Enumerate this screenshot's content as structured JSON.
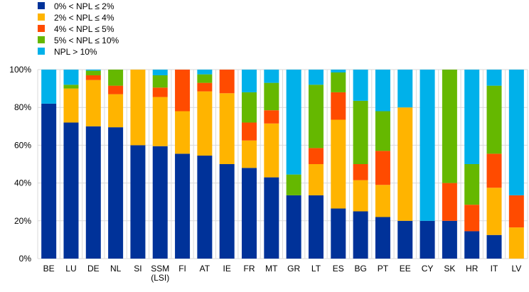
{
  "chart_data": {
    "type": "bar",
    "stacked": true,
    "title": "",
    "xlabel": "",
    "ylabel": "",
    "ylim": [
      0,
      100
    ],
    "yticks": [
      "0%",
      "20%",
      "40%",
      "60%",
      "80%",
      "100%"
    ],
    "ytick_values": [
      0,
      20,
      40,
      60,
      80,
      100
    ],
    "grid": true,
    "legend_position": "top-left",
    "categories": [
      "BE",
      "LU",
      "DE",
      "NL",
      "SI",
      "SSM\n(LSI)",
      "FI",
      "AT",
      "IE",
      "FR",
      "MT",
      "GR",
      "LT",
      "ES",
      "BG",
      "PT",
      "EE",
      "CY",
      "SK",
      "HR",
      "IT",
      "LV"
    ],
    "series": [
      {
        "name": "0% < NPL ≤ 2%",
        "color": "#003299",
        "values": [
          82,
          72,
          70,
          69.5,
          60,
          59.5,
          55.5,
          54.5,
          50,
          48,
          43,
          33.5,
          33.5,
          26.5,
          25,
          22,
          20,
          20,
          20,
          14.5,
          12.5,
          0
        ]
      },
      {
        "name": "2% < NPL ≤ 4%",
        "color": "#FFB400",
        "values": [
          0,
          18,
          24.5,
          17.5,
          40,
          26,
          22.5,
          34,
          37.5,
          14.5,
          28.5,
          0,
          16.5,
          47,
          16.5,
          17,
          60,
          0,
          0,
          0,
          25,
          16.5
        ]
      },
      {
        "name": "4% < NPL ≤ 5%",
        "color": "#FF4B00",
        "values": [
          0,
          0,
          2.5,
          4.5,
          0,
          5,
          22,
          4.5,
          12.5,
          9.5,
          7,
          0,
          8.5,
          14.5,
          8.5,
          18,
          0,
          0,
          20,
          14,
          18,
          17
        ]
      },
      {
        "name": "5% < NPL ≤ 10%",
        "color": "#65B800",
        "values": [
          0,
          2,
          2.5,
          8.5,
          0,
          6.5,
          0,
          4.5,
          0,
          16,
          14.5,
          11,
          33.5,
          10.5,
          33.5,
          21,
          0,
          0,
          60,
          21.5,
          36,
          0
        ]
      },
      {
        "name": "NPL > 10%",
        "color": "#00B1EA",
        "values": [
          18,
          8,
          0.5,
          0,
          0,
          3,
          0,
          2.5,
          0,
          12,
          7,
          55.5,
          8,
          1.5,
          16.5,
          22,
          20,
          80,
          0,
          50,
          8.5,
          66.5
        ]
      }
    ]
  }
}
